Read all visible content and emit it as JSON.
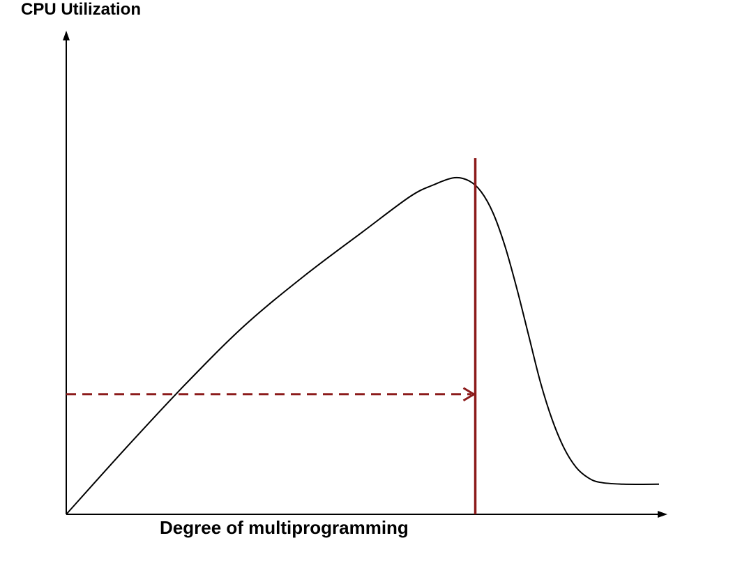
{
  "chart_data": {
    "type": "line",
    "title": "",
    "xlabel": "Degree of multiprogramming",
    "ylabel": "CPU Utilization",
    "xlim": [
      0,
      100
    ],
    "ylim": [
      0,
      100
    ],
    "grid": false,
    "legend": "none",
    "tick_labels": false,
    "series": [
      {
        "x": [
          0,
          10,
          20,
          30,
          40,
          50,
          58,
          62,
          65.5,
          68,
          70,
          72,
          74,
          76,
          78,
          80,
          82,
          84,
          86,
          88,
          90,
          94,
          100
        ],
        "y": [
          0,
          14,
          27.5,
          40,
          50.5,
          60,
          67.5,
          70,
          71.5,
          70.8,
          68.5,
          64,
          57,
          48,
          38,
          28,
          20,
          14,
          10,
          7.8,
          6.8,
          6.4,
          6.4
        ],
        "color": "#000000"
      }
    ],
    "annotations": [
      {
        "kind": "vertical-line",
        "x": 69,
        "color": "#8b1a1a"
      },
      {
        "kind": "dashed-arrow",
        "from": [
          0,
          25.5
        ],
        "to": [
          69,
          25.5
        ],
        "color": "#8b1a1a"
      }
    ]
  }
}
